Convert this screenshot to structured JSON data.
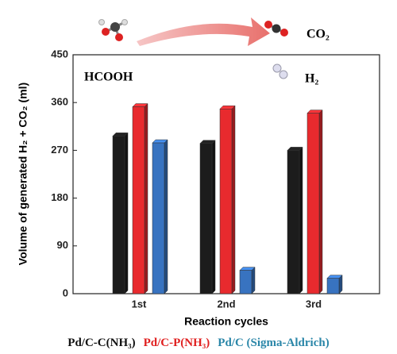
{
  "chart_data": {
    "type": "bar",
    "categories": [
      "1st",
      "2nd",
      "3rd"
    ],
    "series": [
      {
        "name": "Pd/C-C(NH₃)",
        "color": "#1c1c1c",
        "values": [
          297,
          283,
          270
        ]
      },
      {
        "name": "Pd/C-P(NH₃)",
        "color": "#e82a2e",
        "values": [
          352,
          348,
          340
        ]
      },
      {
        "name": "Pd/C (Sigma-Aldrich)",
        "color": "#3873c0",
        "values": [
          284,
          44,
          29
        ]
      }
    ],
    "legend_colors": [
      "#111111",
      "#e02020",
      "#2a86a8"
    ],
    "ylim": [
      0,
      450
    ],
    "yticks": [
      0,
      90,
      180,
      270,
      360,
      450
    ],
    "ylabel": "Volume of generated H₂ + CO₂ (ml)",
    "xlabel": "Reaction cycles",
    "annotations": [
      "HCOOH",
      "H₂",
      "CO₂"
    ]
  }
}
